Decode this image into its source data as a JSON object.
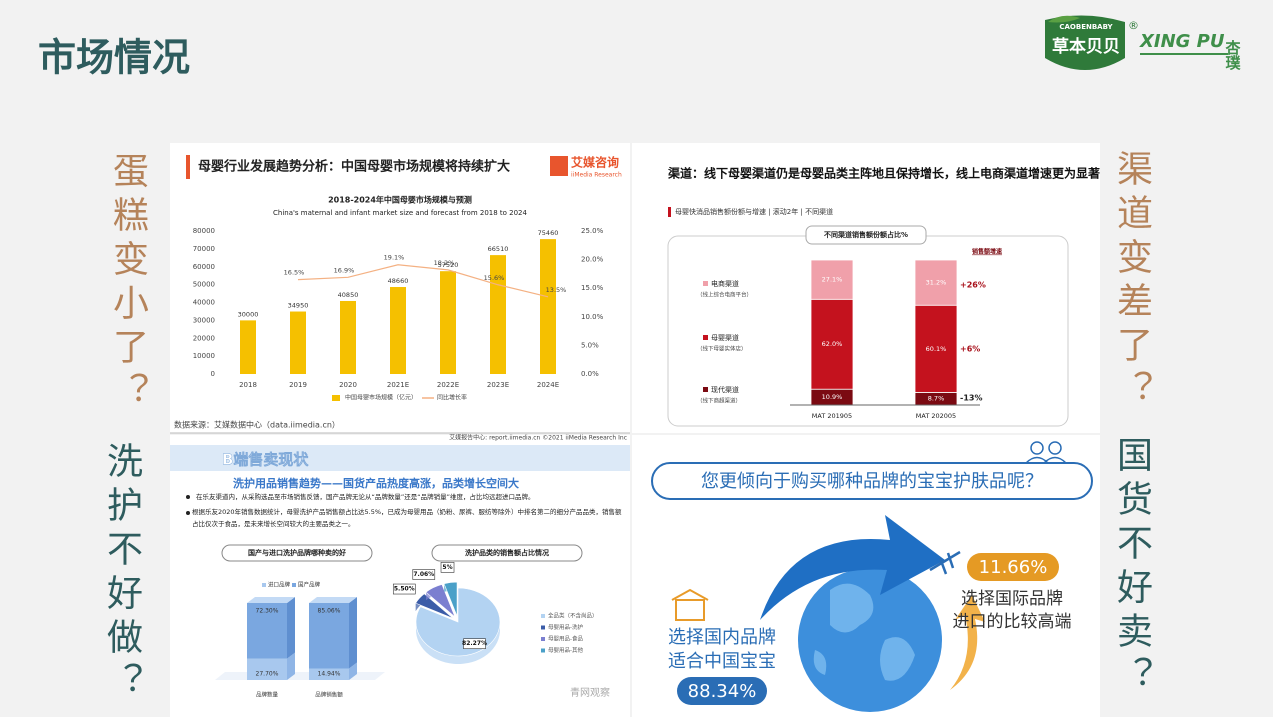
{
  "slide": {
    "title": "市场情况",
    "logo": {
      "brand_en": "CAOBENBABY",
      "brand_cn": "草本贝贝",
      "registered": "®",
      "brand2_en": "XING PU",
      "brand2_cn": "杏璞"
    },
    "questions": {
      "left_top": "蛋糕变小了？",
      "left_bottom": "洗护不好做？",
      "right_top": "渠道变差了？",
      "right_bottom": "国货不好卖？"
    }
  },
  "chart_data": [
    {
      "type": "bar",
      "heading": "母婴行业发展趋势分析：中国母婴市场规模将持续扩大",
      "brand": "艾媒咨询",
      "brand_en": "iiMedia Research",
      "title": "2018-2024年中国母婴市场规模与预测",
      "subtitle": "China's maternal and infant market size and forecast from 2018 to 2024",
      "categories": [
        "2018",
        "2019",
        "2020",
        "2021E",
        "2022E",
        "2023E",
        "2024E"
      ],
      "series": [
        {
          "name": "中国母婴市场规模（亿元）",
          "color": "#f5c000",
          "values": [
            30000,
            34950,
            40850,
            48660,
            57520,
            66510,
            75460
          ]
        },
        {
          "name": "同比增长率",
          "color": "#f4b183",
          "axis": "y2",
          "type": "line",
          "values": [
            null,
            16.5,
            16.9,
            19.1,
            18.2,
            15.6,
            13.5
          ],
          "value_labels": [
            null,
            "16.5%",
            "16.9%",
            "19.1%",
            "18.2%",
            "15.6%",
            "13.5%"
          ]
        }
      ],
      "ylim": [
        0,
        80000
      ],
      "yticks": [
        0,
        10000,
        20000,
        30000,
        40000,
        50000,
        60000,
        70000,
        80000
      ],
      "y2lim": [
        0,
        25
      ],
      "y2ticks": [
        {
          "value": 0,
          "label": "0.0%"
        },
        {
          "value": 5,
          "label": "5.0%"
        },
        {
          "value": 10,
          "label": "10.0%"
        },
        {
          "value": 15,
          "label": "15.0%"
        },
        {
          "value": 20,
          "label": "20.0%"
        },
        {
          "value": 25,
          "label": "25.0%"
        }
      ],
      "grid": false,
      "source": "数据来源：艾媒数据中心（data.iimedia.cn）",
      "footer": "艾媒报告中心: report.iimedia.cn ©2021  iiMedia Research Inc"
    },
    {
      "type": "stacked_bar",
      "heading": "渠道：线下母婴渠道仍是母婴品类主阵地且保持增长，线上电商渠道增速更为显著",
      "subtitle": "母婴快消品销售额份额与增速 | 滚动2年 | 不同渠道",
      "title": "不同渠道销售额份额占比%",
      "growth_title": "销售额增速",
      "categories": [
        "MAT 201905",
        "MAT 202005"
      ],
      "series": [
        {
          "name": "现代渠道",
          "note": "（线下商超渠道）",
          "color": "#7b0a12",
          "values": [
            10.9,
            8.7
          ],
          "value_labels": [
            "10.9%",
            "8.7%"
          ],
          "growth": "-13%"
        },
        {
          "name": "母婴渠道",
          "note": "（线下母婴实体店）",
          "color": "#c4121e",
          "values": [
            62.0,
            60.1
          ],
          "value_labels": [
            "62.0%",
            "60.1%"
          ],
          "growth": "+6%"
        },
        {
          "name": "电商渠道",
          "note": "（线上综合电商平台）",
          "color": "#f0a0aa",
          "values": [
            27.1,
            31.2
          ],
          "value_labels": [
            "27.1%",
            "31.2%"
          ],
          "growth": "+26%"
        }
      ],
      "ylim": [
        0,
        100
      ]
    },
    {
      "type": "stacked_bar_3d",
      "heading": "B端售卖现状",
      "subheading": "洗护用品销售趋势——国货产品热度高涨，品类增长空间大",
      "bullets": [
        "在乐友渠道内，从采购选品至市场销售反馈，国产品牌无论从“品牌数量”还是“品牌销量”维度，占比均远超进口品牌。",
        "根据乐友2020年销售数据统计，母婴洗护产品销售额占比达5.5%，已成为母婴用品（奶粉、尿裤、服纺等除外）中排名第二的细分产品品类，销售额占比仅次于食品，是未来增长空间较大的主要品类之一。"
      ],
      "title": "国产与进口洗护品牌哪种卖的好",
      "categories": [
        "品牌数量",
        "品牌销售额"
      ],
      "series": [
        {
          "name": "进口品牌",
          "color": "#a8c8ee",
          "values": [
            27.7,
            14.94
          ],
          "value_labels": [
            "27.70%",
            "14.94%"
          ]
        },
        {
          "name": "国产品牌",
          "color": "#7aa7e0",
          "values": [
            72.3,
            85.06
          ],
          "value_labels": [
            "72.30%",
            "85.06%"
          ]
        }
      ],
      "ylim": [
        0,
        100
      ]
    },
    {
      "type": "pie",
      "title": "洗护品类的销售额占比情况",
      "categories": [
        "全品类（不含尚品）",
        "母婴用品-洗护",
        "母婴用品-食品",
        "母婴用品-其他"
      ],
      "values": [
        82.27,
        5.5,
        7.06,
        5
      ],
      "value_labels": [
        "82.27%",
        "5.50%",
        "7.06%",
        "5%"
      ],
      "colors": [
        "#b3d3f2",
        "#3b5ca8",
        "#7b7fd0",
        "#4aa0c8"
      ],
      "watermark": "青网观察"
    }
  ],
  "survey": {
    "question": "您更倾向于购买哪种品牌的宝宝护肤品呢？",
    "options": [
      {
        "line1": "选择国内品牌",
        "line2": "适合中国宝宝",
        "percent": "88.34%"
      },
      {
        "line1": "选择国际品牌",
        "line2": "进口的比较高端",
        "percent": "11.66%"
      }
    ]
  }
}
